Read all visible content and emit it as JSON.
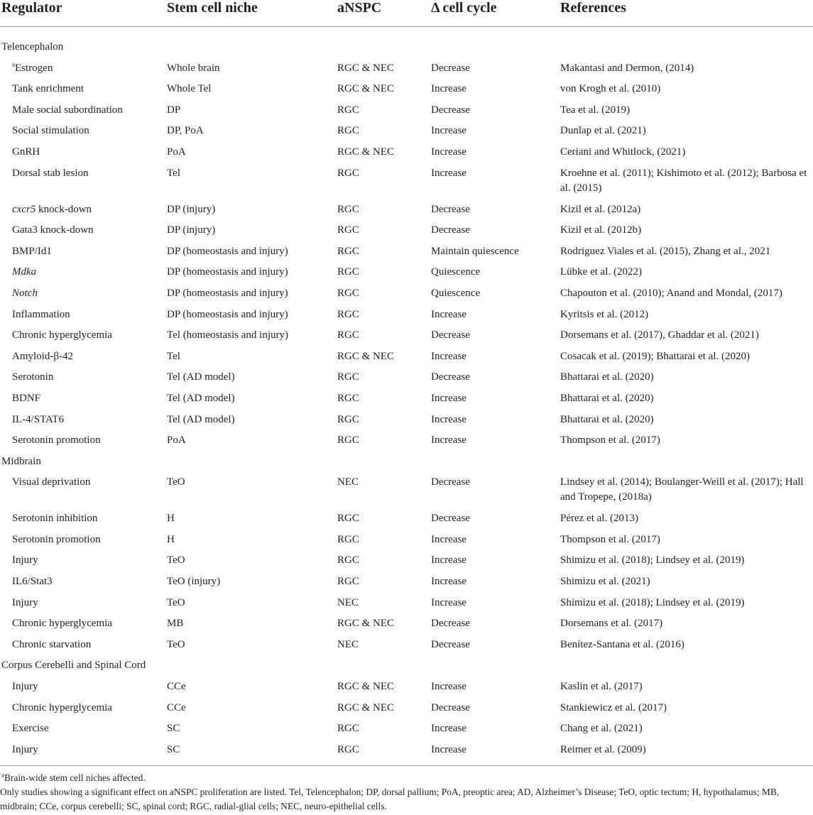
{
  "headers": [
    "Regulator",
    "Stem cell niche",
    "aNSPC",
    "Δ cell cycle",
    "References"
  ],
  "sections": [
    {
      "title": "Telencephalon",
      "rows": [
        {
          "sup": "a",
          "regulator": "Estrogen",
          "italic": false,
          "niche": "Whole brain",
          "ansp": "RGC & NEC",
          "cycle": "Decrease",
          "refs": "Makantasi and Dermon, (2014)"
        },
        {
          "sup": "",
          "regulator": "Tank enrichment",
          "italic": false,
          "niche": "Whole Tel",
          "ansp": "RGC & NEC",
          "cycle": "Increase",
          "refs": "von Krogh et al. (2010)"
        },
        {
          "sup": "",
          "regulator": "Male social subordination",
          "italic": false,
          "niche": "DP",
          "ansp": "RGC",
          "cycle": "Decrease",
          "refs": "Tea et al. (2019)"
        },
        {
          "sup": "",
          "regulator": "Social stimulation",
          "italic": false,
          "niche": "DP, PoA",
          "ansp": "RGC",
          "cycle": "Increase",
          "refs": "Dunlap et al. (2021)"
        },
        {
          "sup": "",
          "regulator": "GnRH",
          "italic": false,
          "niche": "PoA",
          "ansp": "RGC & NEC",
          "cycle": "Increase",
          "refs": "Ceriani and Whitlock, (2021)"
        },
        {
          "sup": "",
          "regulator": "Dorsal stab lesion",
          "italic": false,
          "niche": "Tel",
          "ansp": "RGC",
          "cycle": "Increase",
          "refs": "Kroehne et al. (2011); Kishimoto et al. (2012); Barbosa et al. (2015)",
          "tall": true
        },
        {
          "sup": "",
          "regulator": "cxcr5",
          "suffix": " knock-down",
          "italic": true,
          "niche": "DP (injury)",
          "ansp": "RGC",
          "cycle": "Decrease",
          "refs": "Kizil et al. (2012a)"
        },
        {
          "sup": "",
          "regulator": "Gata3 knock-down",
          "italic": false,
          "niche": "DP (injury)",
          "ansp": "RGC",
          "cycle": "Decrease",
          "refs": "Kizil et al. (2012b)"
        },
        {
          "sup": "",
          "regulator": "BMP/Id1",
          "italic": false,
          "niche": "DP (homeostasis and injury)",
          "ansp": "RGC",
          "cycle": "Maintain quiescence",
          "refs": "Rodriguez Viales et al. (2015), Zhang et al., 2021"
        },
        {
          "sup": "",
          "regulator": "Mdka",
          "italic": true,
          "niche": "DP (homeostasis and injury)",
          "ansp": "RGC",
          "cycle": "Quiescence",
          "refs": "Lübke et al. (2022)"
        },
        {
          "sup": "",
          "regulator": "Notch",
          "italic": true,
          "niche": "DP (homeostasis and injury)",
          "ansp": "RGC",
          "cycle": "Quiescence",
          "refs": "Chapouton et al. (2010); Anand and Mondal, (2017)"
        },
        {
          "sup": "",
          "regulator": "Inflammation",
          "italic": false,
          "niche": "DP (homeostasis and injury)",
          "ansp": "RGC",
          "cycle": "Increase",
          "refs": "Kyritsis et al. (2012)"
        },
        {
          "sup": "",
          "regulator": "Chronic hyperglycemia",
          "italic": false,
          "niche": "Tel (homeostasis and injury)",
          "ansp": "RGC",
          "cycle": "Decrease",
          "refs": "Dorsemans et al. (2017), Ghaddar et al. (2021)"
        },
        {
          "sup": "",
          "regulator": "Amyloid-β-42",
          "italic": false,
          "niche": "Tel",
          "ansp": "RGC & NEC",
          "cycle": "Increase",
          "refs": "Cosacak et al. (2019); Bhattarai et al. (2020)"
        },
        {
          "sup": "",
          "regulator": "Serotonin",
          "italic": false,
          "niche": "Tel (AD model)",
          "ansp": "RGC",
          "cycle": "Decrease",
          "refs": "Bhattarai et al. (2020)"
        },
        {
          "sup": "",
          "regulator": "BDNF",
          "italic": false,
          "niche": "Tel (AD model)",
          "ansp": "RGC",
          "cycle": "Increase",
          "refs": "Bhattarai et al. (2020)"
        },
        {
          "sup": "",
          "regulator": "IL-4/STAT6",
          "italic": false,
          "niche": "Tel (AD model)",
          "ansp": "RGC",
          "cycle": "Increase",
          "refs": "Bhattarai et al. (2020)"
        },
        {
          "sup": "",
          "regulator": "Serotonin promotion",
          "italic": false,
          "niche": "PoA",
          "ansp": "RGC",
          "cycle": "Increase",
          "refs": "Thompson et al. (2017)"
        }
      ]
    },
    {
      "title": "Midbrain",
      "rows": [
        {
          "sup": "",
          "regulator": "Visual deprivation",
          "italic": false,
          "niche": "TeO",
          "ansp": "NEC",
          "cycle": "Decrease",
          "refs": "Lindsey et al. (2014); Boulanger-Weill et al. (2017); Hall and Tropepe, (2018a)",
          "tall": true
        },
        {
          "sup": "",
          "regulator": "Serotonin inhibition",
          "italic": false,
          "niche": "H",
          "ansp": "RGC",
          "cycle": "Decrease",
          "refs": "Pérez et al. (2013)"
        },
        {
          "sup": "",
          "regulator": "Serotonin promotion",
          "italic": false,
          "niche": "H",
          "ansp": "RGC",
          "cycle": "Increase",
          "refs": "Thompson et al. (2017)"
        },
        {
          "sup": "",
          "regulator": "Injury",
          "italic": false,
          "niche": "TeO",
          "ansp": "RGC",
          "cycle": "Increase",
          "refs": "Shimizu et al. (2018); Lindsey et al. (2019)"
        },
        {
          "sup": "",
          "regulator": "IL6/Stat3",
          "italic": false,
          "niche": "TeO (injury)",
          "ansp": "RGC",
          "cycle": "Increase",
          "refs": "Shimizu et al. (2021)"
        },
        {
          "sup": "",
          "regulator": "Injury",
          "italic": false,
          "niche": "TeO",
          "ansp": "NEC",
          "cycle": "Increase",
          "refs": "Shimizu et al. (2018); Lindsey et al. (2019)"
        },
        {
          "sup": "",
          "regulator": "Chronic hyperglycemia",
          "italic": false,
          "niche": "MB",
          "ansp": "RGC & NEC",
          "cycle": "Decrease",
          "refs": "Dorsemans et al. (2017)"
        },
        {
          "sup": "",
          "regulator": "Chronic starvation",
          "italic": false,
          "niche": "TeO",
          "ansp": "NEC",
          "cycle": "Decrease",
          "refs": "Benítez-Santana et al. (2016)"
        }
      ]
    },
    {
      "title": "Corpus Cerebelli and Spinal Cord",
      "rows": [
        {
          "sup": "",
          "regulator": "Injury",
          "italic": false,
          "niche": "CCe",
          "ansp": "RGC & NEC",
          "cycle": "Increase",
          "refs": "Kaslin et al. (2017)"
        },
        {
          "sup": "",
          "regulator": "Chronic hyperglycemia",
          "italic": false,
          "niche": "CCe",
          "ansp": "RGC & NEC",
          "cycle": "Decrease",
          "refs": "Stankiewicz et al. (2017)"
        },
        {
          "sup": "",
          "regulator": "Exercise",
          "italic": false,
          "niche": "SC",
          "ansp": "RGC",
          "cycle": "Increase",
          "refs": "Chang et al. (2021)"
        },
        {
          "sup": "",
          "regulator": "Injury",
          "italic": false,
          "niche": "SC",
          "ansp": "RGC",
          "cycle": "Increase",
          "refs": "Reimer et al. (2009)"
        }
      ]
    }
  ],
  "footnote": {
    "sup": "a",
    "text": "Brain-wide stem cell niches affected."
  },
  "note": "Only studies showing a significant effect on aNSPC proliferation are listed. Tel, Telencephalon; DP, dorsal pallium; PoA, preoptic area; AD, Alzheimer’s Disease; TeO, optic tectum; H, hypothalamus; MB, midbrain; CCe, corpus cerebelli; SC, spinal cord; RGC, radial-glial cells; NEC, neuro-epithelial cells."
}
